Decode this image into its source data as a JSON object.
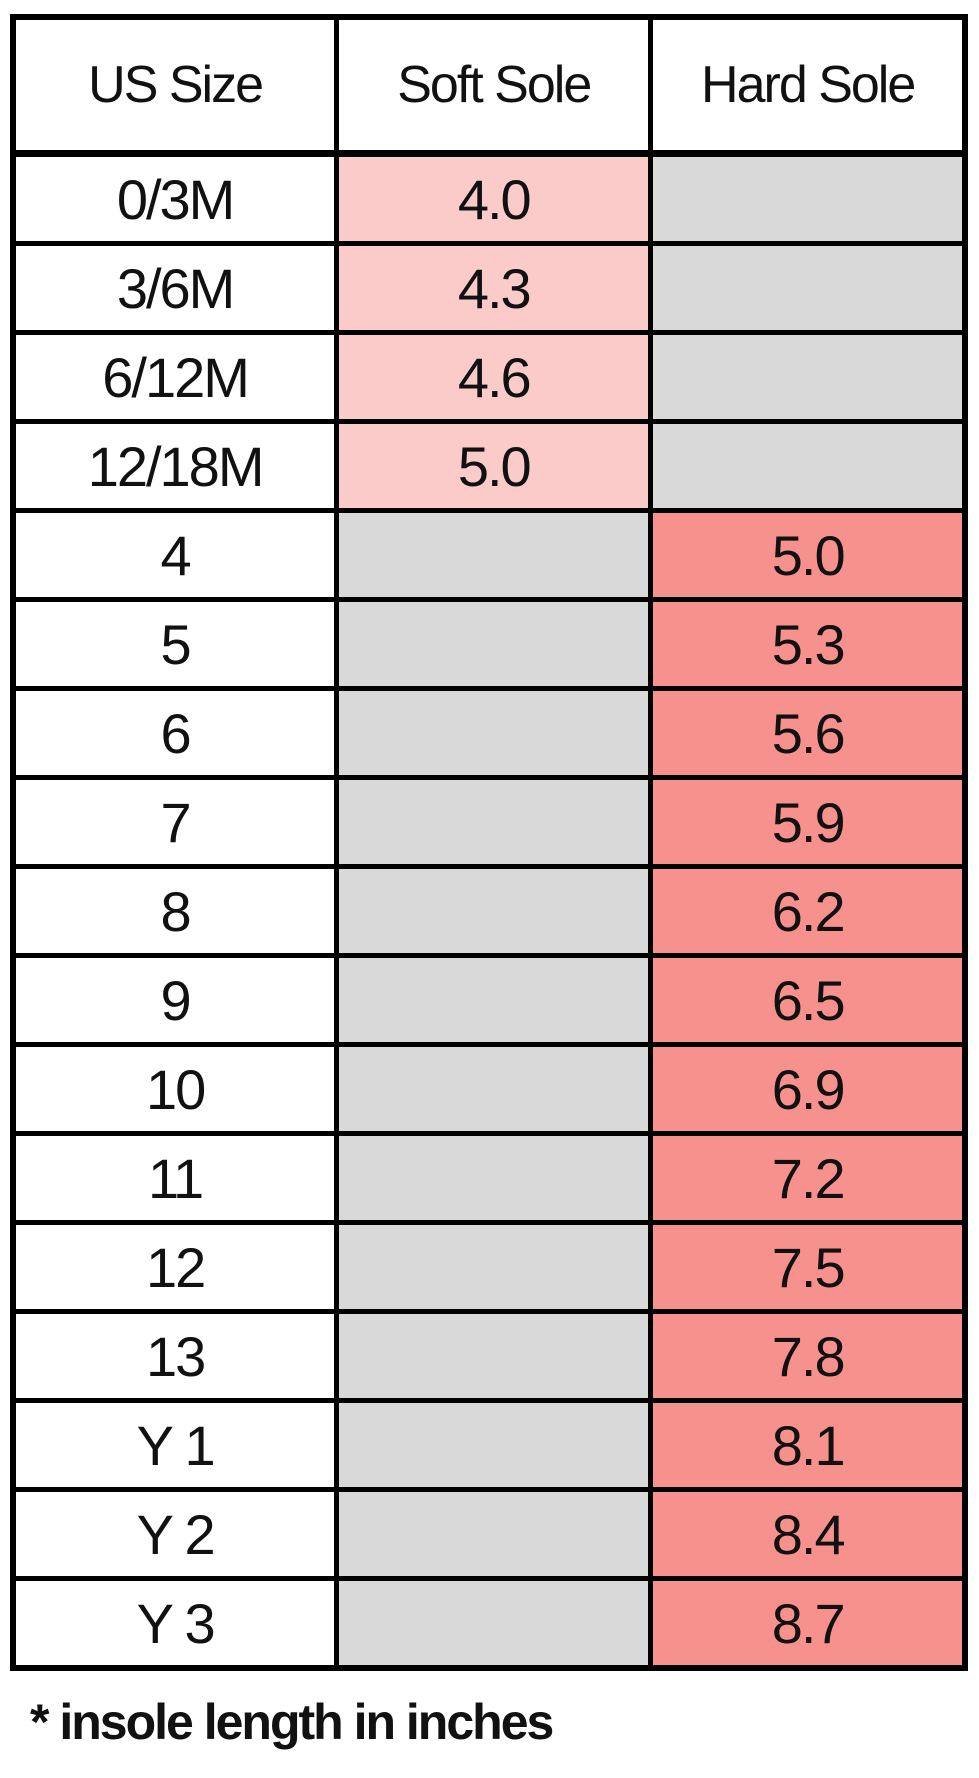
{
  "chart_data": {
    "type": "table",
    "columns": [
      "US Size",
      "Soft Sole",
      "Hard Sole"
    ],
    "rows": [
      {
        "us_size": "0/3M",
        "soft_sole": "4.0",
        "hard_sole": ""
      },
      {
        "us_size": "3/6M",
        "soft_sole": "4.3",
        "hard_sole": ""
      },
      {
        "us_size": "6/12M",
        "soft_sole": "4.6",
        "hard_sole": ""
      },
      {
        "us_size": "12/18M",
        "soft_sole": "5.0",
        "hard_sole": ""
      },
      {
        "us_size": "4",
        "soft_sole": "",
        "hard_sole": "5.0"
      },
      {
        "us_size": "5",
        "soft_sole": "",
        "hard_sole": "5.3"
      },
      {
        "us_size": "6",
        "soft_sole": "",
        "hard_sole": "5.6"
      },
      {
        "us_size": "7",
        "soft_sole": "",
        "hard_sole": "5.9"
      },
      {
        "us_size": "8",
        "soft_sole": "",
        "hard_sole": "6.2"
      },
      {
        "us_size": "9",
        "soft_sole": "",
        "hard_sole": "6.5"
      },
      {
        "us_size": "10",
        "soft_sole": "",
        "hard_sole": "6.9"
      },
      {
        "us_size": "11",
        "soft_sole": "",
        "hard_sole": "7.2"
      },
      {
        "us_size": "12",
        "soft_sole": "",
        "hard_sole": "7.5"
      },
      {
        "us_size": "13",
        "soft_sole": "",
        "hard_sole": "7.8"
      },
      {
        "us_size": "Y 1",
        "soft_sole": "",
        "hard_sole": "8.1"
      },
      {
        "us_size": "Y 2",
        "soft_sole": "",
        "hard_sole": "8.4"
      },
      {
        "us_size": "Y 3",
        "soft_sole": "",
        "hard_sole": "8.7"
      }
    ],
    "footnote": "* insole length in inches",
    "layout": {
      "grid": "on",
      "header_row": true
    }
  },
  "colors": {
    "soft_sole_fill": "#FBCBC9",
    "hard_sole_fill": "#F7918D",
    "empty_fill": "#D9D9D9",
    "border": "#000000",
    "background": "#FFFFFF"
  }
}
